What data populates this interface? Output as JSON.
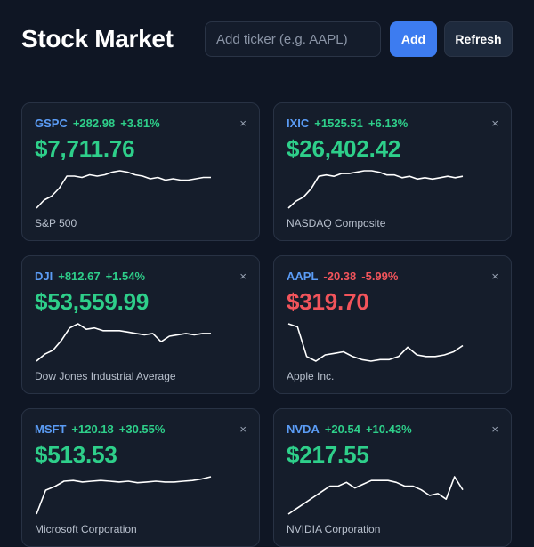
{
  "header": {
    "title": "Stock Market",
    "ticker_placeholder": "Add ticker (e.g. AAPL)",
    "add_label": "Add",
    "refresh_label": "Refresh"
  },
  "colors": {
    "up": "#2ecf8a",
    "down": "#f2545b",
    "symbol": "#5b9cf5",
    "accent": "#3d7cf0"
  },
  "cards": [
    {
      "symbol": "GSPC",
      "change": "+282.98",
      "percent": "+3.81%",
      "direction": "up",
      "price": "$7,711.76",
      "name": "S&P 500",
      "close_glyph": "×",
      "series": [
        24,
        30,
        33,
        39,
        48,
        48,
        47,
        49,
        48,
        49,
        51,
        52,
        51,
        49,
        48,
        46,
        47,
        45,
        46,
        45,
        45,
        46,
        47,
        47
      ]
    },
    {
      "symbol": "IXIC",
      "change": "+1525.51",
      "percent": "+6.13%",
      "direction": "up",
      "price": "$26,402.42",
      "name": "NASDAQ Composite",
      "close_glyph": "×",
      "series": [
        24,
        29,
        32,
        38,
        47,
        48,
        47,
        49,
        49,
        50,
        51,
        51,
        50,
        48,
        48,
        46,
        47,
        45,
        46,
        45,
        46,
        47,
        46,
        47
      ]
    },
    {
      "symbol": "DJI",
      "change": "+812.67",
      "percent": "+1.54%",
      "direction": "up",
      "price": "$53,559.99",
      "name": "Dow Jones Industrial Average",
      "close_glyph": "×",
      "series": [
        40,
        45,
        48,
        55,
        64,
        67,
        63,
        64,
        62,
        62,
        62,
        61,
        60,
        59,
        60,
        54,
        58,
        59,
        60,
        59,
        60,
        60
      ]
    },
    {
      "symbol": "AAPL",
      "change": "-20.38",
      "percent": "-5.99%",
      "direction": "down",
      "price": "$319.70",
      "name": "Apple Inc.",
      "close_glyph": "×",
      "series": [
        330,
        328,
        309,
        306,
        310,
        311,
        312,
        309,
        307,
        306,
        307,
        307,
        309,
        315,
        310,
        309,
        309,
        310,
        312,
        316
      ]
    },
    {
      "symbol": "MSFT",
      "change": "+120.18",
      "percent": "+30.55%",
      "direction": "up",
      "price": "$513.53",
      "name": "Microsoft Corporation",
      "close_glyph": "×",
      "series": [
        393,
        425,
        430,
        437,
        438,
        436,
        437,
        438,
        437,
        436,
        437,
        435,
        436,
        437,
        436,
        436,
        437,
        438,
        440,
        443
      ]
    },
    {
      "symbol": "NVDA",
      "change": "+20.54",
      "percent": "+10.43%",
      "direction": "up",
      "price": "$217.55",
      "name": "NVIDIA Corporation",
      "close_glyph": "×",
      "series": [
        197,
        200,
        203,
        206,
        209,
        212,
        212,
        214,
        211,
        213,
        215,
        215,
        215,
        214,
        212,
        212,
        210,
        207,
        208,
        205,
        217,
        210
      ]
    }
  ]
}
